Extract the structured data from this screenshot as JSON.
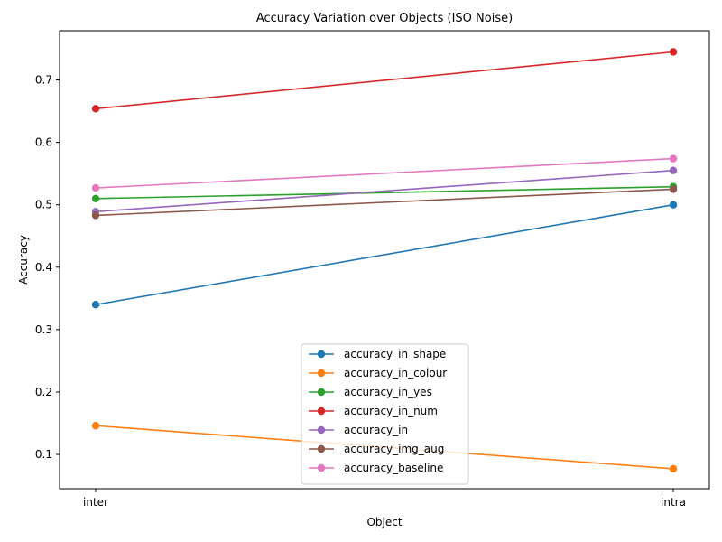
{
  "chart_data": {
    "type": "line",
    "title": "Accuracy Variation over Objects (ISO Noise)",
    "xlabel": "Object",
    "ylabel": "Accuracy",
    "categories": [
      "inter",
      "intra"
    ],
    "ylim": [
      0.045,
      0.779
    ],
    "yticks": [
      0.1,
      0.2,
      0.3,
      0.4,
      0.5,
      0.6,
      0.7
    ],
    "ytick_labels": [
      "0.1",
      "0.2",
      "0.3",
      "0.4",
      "0.5",
      "0.6",
      "0.7"
    ],
    "grid": false,
    "legend_position": "lower center",
    "series": [
      {
        "name": "accuracy_in_shape",
        "color": "#1f77b4",
        "values": [
          0.34,
          0.5
        ]
      },
      {
        "name": "accuracy_in_colour",
        "color": "#ff7f0e",
        "values": [
          0.146,
          0.077
        ]
      },
      {
        "name": "accuracy_in_yes",
        "color": "#2ca02c",
        "values": [
          0.51,
          0.529
        ]
      },
      {
        "name": "accuracy_in_num",
        "color": "#d62728",
        "values": [
          0.654,
          0.745
        ]
      },
      {
        "name": "accuracy_in",
        "color": "#9467bd",
        "values": [
          0.489,
          0.555
        ]
      },
      {
        "name": "accuracy_img_aug",
        "color": "#8c564b",
        "values": [
          0.483,
          0.525
        ]
      },
      {
        "name": "accuracy_baseline",
        "color": "#e377c2",
        "values": [
          0.527,
          0.574
        ]
      }
    ]
  }
}
